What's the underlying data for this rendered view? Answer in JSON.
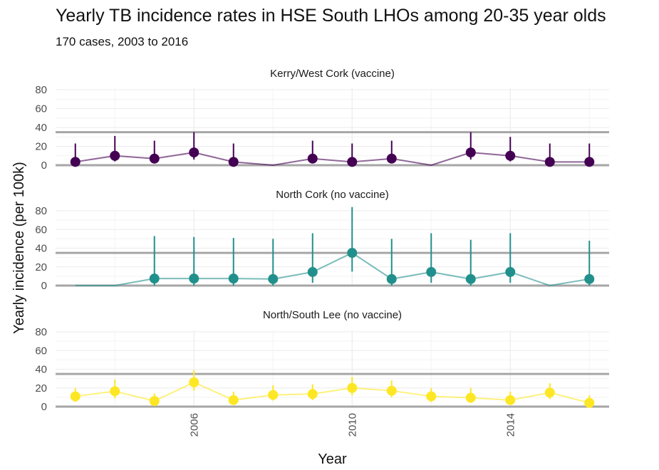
{
  "chart_data": {
    "type": "line",
    "title": "Yearly TB incidence rates in HSE South LHOs among 20-35 year olds",
    "subtitle": "170 cases, 2003 to 2016",
    "xlabel": "Year",
    "ylabel": "Yearly incidence (per 100k)",
    "x_ticks": [
      2006,
      2010,
      2014
    ],
    "y_ticks": [
      0,
      20,
      40,
      60,
      80
    ],
    "ylim": [
      0,
      80
    ],
    "xlim": [
      2002.5,
      2016.5
    ],
    "reference_line": 35,
    "grid": true,
    "panels": [
      {
        "name": "Kerry/West Cork (vaccine)",
        "color": "#440154",
        "x": [
          2003,
          2004,
          2005,
          2006,
          2007,
          2008,
          2009,
          2010,
          2011,
          2012,
          2013,
          2014,
          2015,
          2016
        ],
        "values": [
          3.5,
          10,
          7,
          13.5,
          3.5,
          0,
          7,
          3.5,
          7,
          0,
          13.5,
          10,
          3.5,
          3.5
        ],
        "lower": [
          0.5,
          4,
          2,
          6,
          0.5,
          0,
          2,
          0.5,
          2,
          0,
          6,
          4,
          0.5,
          0.5
        ],
        "upper": [
          23,
          31,
          26,
          35,
          23,
          0,
          26,
          23,
          26,
          0,
          35,
          30,
          23,
          23
        ]
      },
      {
        "name": "North Cork (no vaccine)",
        "color": "#21908C",
        "x": [
          2003,
          2004,
          2005,
          2006,
          2007,
          2008,
          2009,
          2010,
          2011,
          2012,
          2013,
          2014,
          2015,
          2016
        ],
        "values": [
          0,
          0,
          7.5,
          7.5,
          7.5,
          7,
          14.5,
          35,
          7,
          14.5,
          7,
          14.5,
          0,
          7
        ],
        "lower": [
          0,
          0,
          0,
          0,
          0,
          0,
          3,
          15,
          0,
          3,
          0,
          3,
          0,
          0
        ],
        "upper": [
          0,
          0,
          53,
          52,
          51,
          50,
          56,
          84,
          50,
          56,
          49,
          56,
          0,
          48
        ]
      },
      {
        "name": "North/South Lee (no vaccine)",
        "color": "#FDE725",
        "x": [
          2003,
          2004,
          2005,
          2006,
          2007,
          2008,
          2009,
          2010,
          2011,
          2012,
          2013,
          2014,
          2015,
          2016
        ],
        "values": [
          11,
          16.5,
          6,
          26,
          7,
          12.5,
          13.5,
          20,
          17,
          11,
          9.5,
          7,
          15,
          4
        ],
        "lower": [
          5,
          9,
          2,
          17,
          2.5,
          6.5,
          7,
          12,
          10,
          5,
          4,
          2.5,
          8,
          1
        ],
        "upper": [
          20,
          29,
          14,
          39,
          16,
          23,
          24,
          32,
          28,
          20,
          20,
          16,
          25,
          12
        ]
      }
    ]
  }
}
